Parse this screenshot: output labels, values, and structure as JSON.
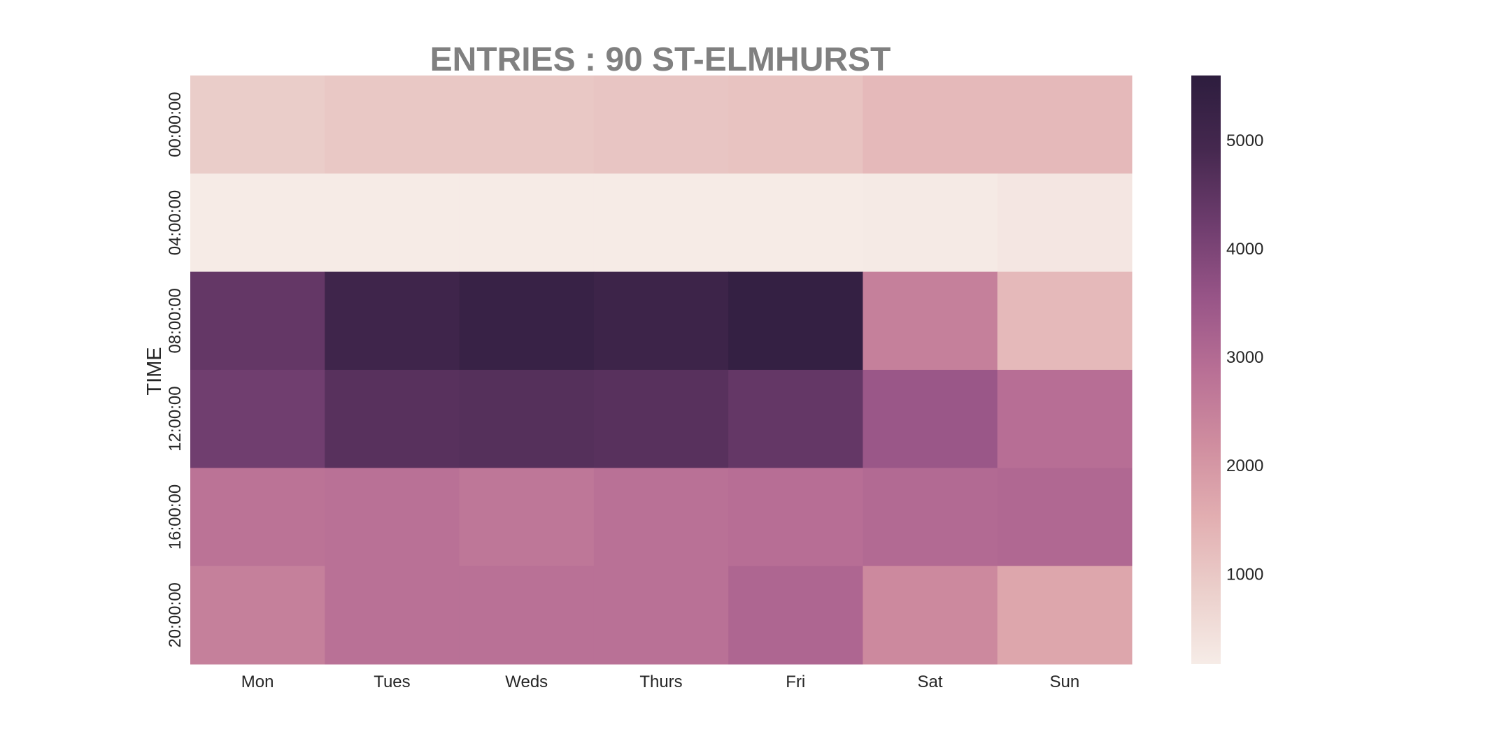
{
  "chart_data": {
    "type": "heatmap",
    "title": "ENTRIES : 90 ST-ELMHURST",
    "xlabel": "",
    "ylabel": "TIME",
    "x_categories": [
      "Mon",
      "Tues",
      "Weds",
      "Thurs",
      "Fri",
      "Sat",
      "Sun"
    ],
    "y_categories": [
      "00:00:00",
      "04:00:00",
      "08:00:00",
      "12:00:00",
      "16:00:00",
      "20:00:00"
    ],
    "values": [
      [
        900,
        1000,
        1000,
        1050,
        1100,
        1300,
        1300
      ],
      [
        200,
        200,
        200,
        200,
        200,
        220,
        300
      ],
      [
        4400,
        5100,
        5300,
        5150,
        5400,
        2500,
        1300
      ],
      [
        4200,
        4600,
        4650,
        4600,
        4400,
        3500,
        2900
      ],
      [
        2800,
        2850,
        2700,
        2850,
        2900,
        3000,
        3050
      ],
      [
        2500,
        2850,
        2850,
        2850,
        3100,
        2300,
        1700
      ]
    ],
    "colorbar": {
      "min": 170,
      "max": 5600,
      "ticks": [
        "1000",
        "2000",
        "3000",
        "4000",
        "5000"
      ],
      "tick_values": [
        1000,
        2000,
        3000,
        4000,
        5000
      ],
      "colormap": [
        "#f6ece7",
        "#ebcfcb",
        "#e2aeb1",
        "#cf8d9f",
        "#b86f95",
        "#975487",
        "#6d3c6d",
        "#45284f",
        "#2d1d3e"
      ]
    },
    "grid": false,
    "legend": "colorbar-right"
  }
}
